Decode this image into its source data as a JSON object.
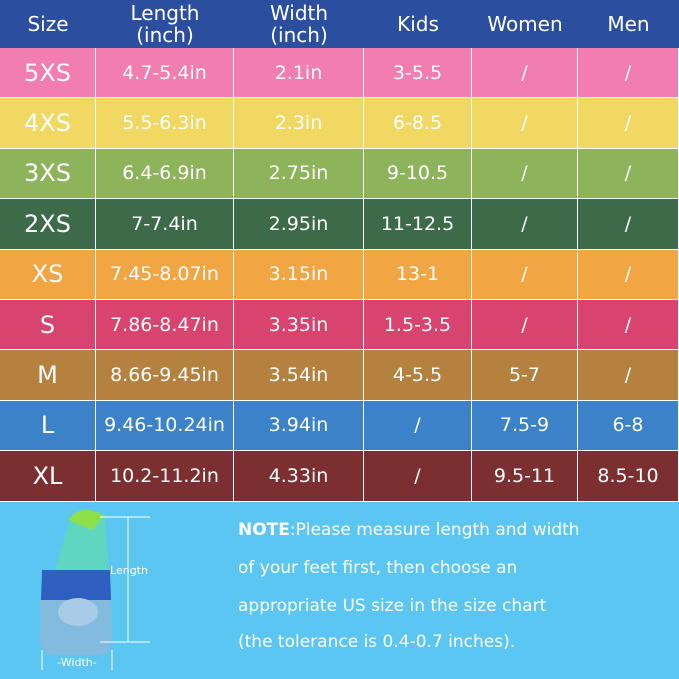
{
  "table": {
    "header": [
      "Size",
      "Length\n(inch)",
      "Width\n(inch)",
      "Kids",
      "Women",
      "Men"
    ],
    "rows": [
      [
        "5XS",
        "4.7-5.4in",
        "2.1in",
        "3-5.5",
        "/",
        "/"
      ],
      [
        "4XS",
        "5.5-6.3in",
        "2.3in",
        "6-8.5",
        "/",
        "/"
      ],
      [
        "3XS",
        "6.4-6.9in",
        "2.75in",
        "9-10.5",
        "/",
        "/"
      ],
      [
        "2XS",
        "7-7.4in",
        "2.95in",
        "11-12.5",
        "/",
        "/"
      ],
      [
        "XS",
        "7.45-8.07in",
        "3.15in",
        "13-1",
        "/",
        "/"
      ],
      [
        "S",
        "7.86-8.47in",
        "3.35in",
        "1.5-3.5",
        "/",
        "/"
      ],
      [
        "M",
        "8.66-9.45in",
        "3.54in",
        "4-5.5",
        "5-7",
        "/"
      ],
      [
        "L",
        "9.46-10.24in",
        "3.94in",
        "/",
        "7.5-9",
        "6-8"
      ],
      [
        "XL",
        "10.2-11.2in",
        "4.33in",
        "/",
        "9.5-11",
        "8.5-10"
      ]
    ]
  },
  "note": {
    "label": "NOTE",
    "lines": [
      ":Please measure length and width",
      "of your feet first, then choose an",
      "appropriate US size in the size chart",
      "(the tolerance is 0.4-0.7 inches)."
    ]
  },
  "figure": {
    "length_label": "Length",
    "width_label": "-Width-"
  }
}
